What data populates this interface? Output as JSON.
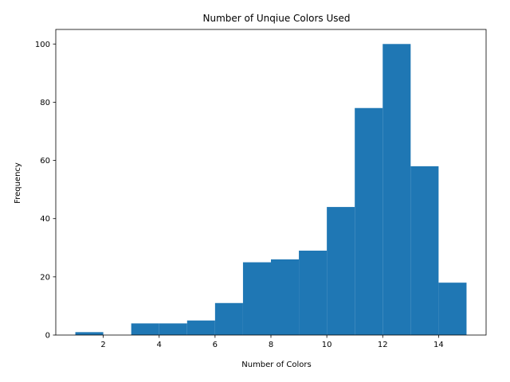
{
  "chart_data": {
    "type": "bar",
    "title": "Number of Unqiue Colors Used",
    "xlabel": "Number of Colors",
    "ylabel": "Frequency",
    "bar_color": "#1f77b4",
    "bins": [
      {
        "x0": 1,
        "x1": 2,
        "value": 1
      },
      {
        "x0": 2,
        "x1": 3,
        "value": 0
      },
      {
        "x0": 3,
        "x1": 4,
        "value": 4
      },
      {
        "x0": 4,
        "x1": 5,
        "value": 4
      },
      {
        "x0": 5,
        "x1": 6,
        "value": 5
      },
      {
        "x0": 6,
        "x1": 7,
        "value": 11
      },
      {
        "x0": 7,
        "x1": 8,
        "value": 25
      },
      {
        "x0": 8,
        "x1": 9,
        "value": 26
      },
      {
        "x0": 9,
        "x1": 10,
        "value": 29
      },
      {
        "x0": 10,
        "x1": 11,
        "value": 44
      },
      {
        "x0": 11,
        "x1": 12,
        "value": 78
      },
      {
        "x0": 12,
        "x1": 13,
        "value": 100
      },
      {
        "x0": 13,
        "x1": 14,
        "value": 58
      },
      {
        "x0": 14,
        "x1": 15,
        "value": 18
      }
    ],
    "xlim": [
      0.3,
      15.7
    ],
    "ylim": [
      0,
      105
    ],
    "xticks": [
      2,
      4,
      6,
      8,
      10,
      12,
      14
    ],
    "yticks": [
      0,
      20,
      40,
      60,
      80,
      100
    ],
    "grid": false,
    "legend": "none"
  }
}
